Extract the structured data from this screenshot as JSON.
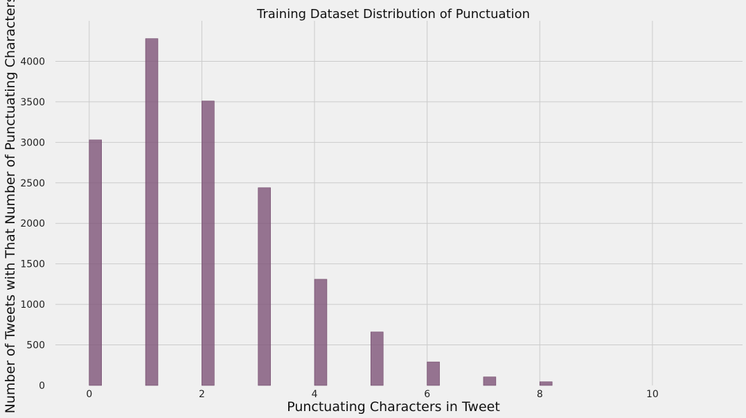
{
  "chart_data": {
    "type": "bar",
    "title": "Training Dataset Distribution of Punctuation",
    "xlabel": "Punctuating Characters in Tweet",
    "ylabel": "Number of Tweets with That Number of Punctuating Characters",
    "xlim": [
      -0.6,
      11.6
    ],
    "ylim": [
      0,
      4500
    ],
    "xticks": [
      0,
      2,
      4,
      6,
      8,
      10
    ],
    "yticks": [
      0,
      500,
      1000,
      1500,
      2000,
      2500,
      3000,
      3500,
      4000
    ],
    "grid": true,
    "legend": "none",
    "bar_color": "#7b4f74",
    "background_color": "#f0f0f0",
    "bin_width": 0.22,
    "x": [
      0,
      1,
      2,
      3,
      4,
      5,
      6,
      7,
      8
    ],
    "values": [
      3030,
      4280,
      3510,
      2440,
      1310,
      660,
      290,
      105,
      45
    ]
  }
}
